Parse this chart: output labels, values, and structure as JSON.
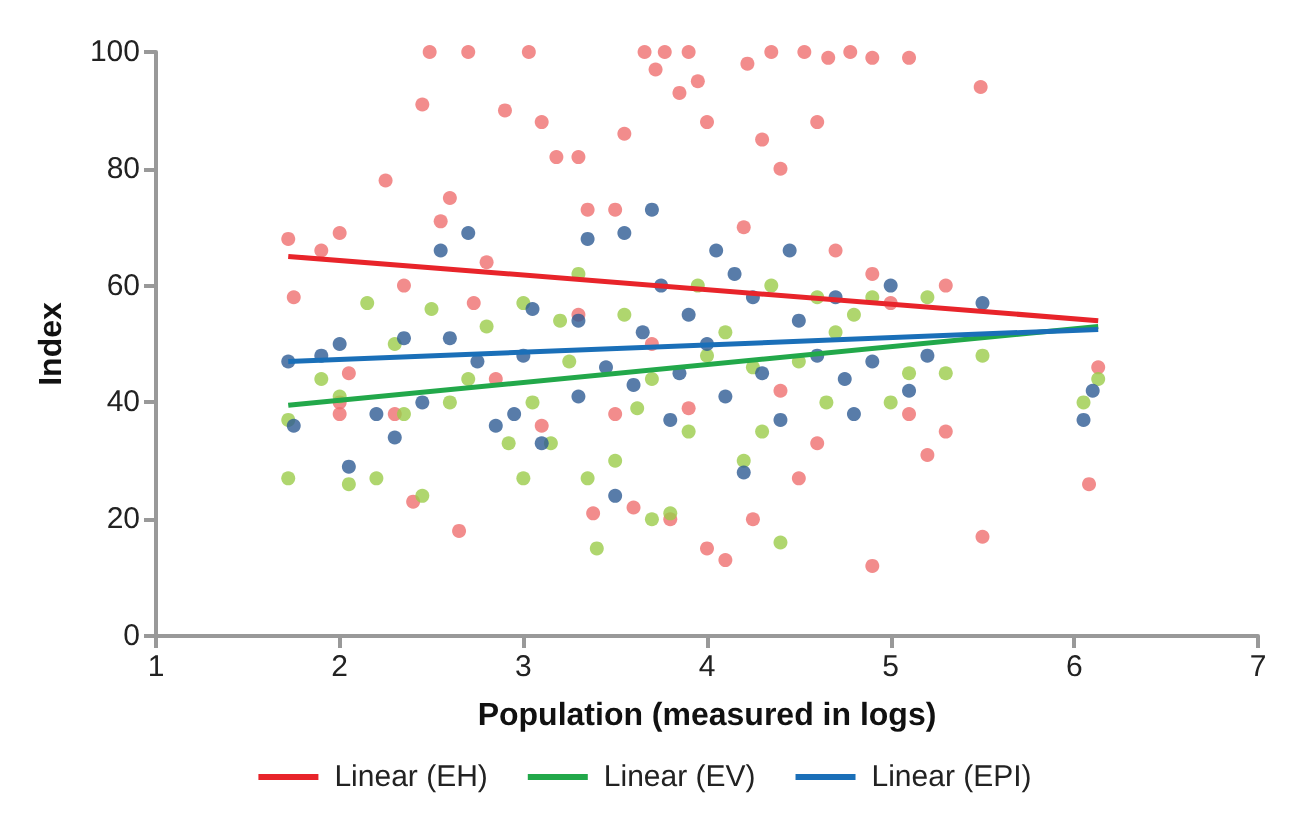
{
  "chart_data": {
    "type": "scatter",
    "xlabel": "Population (measured in logs)",
    "ylabel": "Index",
    "xlim": [
      1,
      7
    ],
    "xticks": [
      1,
      2,
      3,
      4,
      5,
      6,
      7
    ],
    "ylim": [
      0,
      100
    ],
    "yticks": [
      0,
      20,
      40,
      60,
      80,
      100
    ],
    "grid": false,
    "legend": "bottom",
    "marker": "circle",
    "series": [
      {
        "color": "#ef6f6f",
        "x": [
          1.72,
          1.75,
          1.9,
          2.0,
          2.05,
          2.25,
          2.35,
          2.45,
          2.49,
          2.55,
          2.6,
          2.7,
          2.73,
          2.8,
          2.9,
          3.03,
          3.1,
          3.18,
          3.3,
          3.35,
          3.5,
          3.55,
          3.66,
          3.72,
          3.77,
          3.85,
          3.9,
          3.95,
          4.0,
          4.22,
          4.3,
          4.35,
          4.4,
          4.53,
          4.6,
          4.66,
          4.78,
          4.9,
          5.1,
          5.49,
          4.2,
          4.7,
          4.9,
          5.0,
          5.3,
          6.13,
          6.08,
          2.65,
          2.4,
          2.0,
          3.38,
          3.6,
          3.8,
          4.0,
          4.1,
          4.25,
          4.5,
          4.9,
          5.2,
          5.5,
          5.3,
          4.6,
          3.9,
          3.1,
          2.85,
          2.3,
          3.3,
          3.7,
          4.4,
          5.1,
          2.0,
          3.5
        ],
        "values": [
          68,
          58,
          66,
          69,
          45,
          78,
          60,
          91,
          100,
          71,
          75,
          100,
          57,
          64,
          90,
          100,
          88,
          82,
          82,
          73,
          73,
          86,
          100,
          97,
          100,
          93,
          100,
          95,
          88,
          98,
          85,
          100,
          80,
          100,
          88,
          99,
          100,
          99,
          99,
          94,
          70,
          66,
          62,
          57,
          60,
          46,
          26,
          18,
          23,
          38,
          21,
          22,
          20,
          15,
          13,
          20,
          27,
          12,
          31,
          17,
          35,
          33,
          39,
          36,
          44,
          38,
          55,
          50,
          42,
          38,
          40,
          38
        ]
      },
      {
        "color": "#9bcc4a",
        "x": [
          1.72,
          1.72,
          1.9,
          2.0,
          2.05,
          2.2,
          2.35,
          2.45,
          2.5,
          2.6,
          2.7,
          2.8,
          2.92,
          3.0,
          3.05,
          3.15,
          3.25,
          3.35,
          3.4,
          3.5,
          3.55,
          3.62,
          3.7,
          3.8,
          3.9,
          3.95,
          4.0,
          4.1,
          4.2,
          4.25,
          4.3,
          4.4,
          4.5,
          4.6,
          4.65,
          4.8,
          4.9,
          5.0,
          5.1,
          5.2,
          5.3,
          5.5,
          6.05,
          6.13,
          3.0,
          2.3,
          3.3,
          3.7,
          4.35,
          4.7,
          2.15,
          3.2
        ],
        "values": [
          37,
          27,
          44,
          41,
          26,
          27,
          38,
          24,
          56,
          40,
          44,
          53,
          33,
          27,
          40,
          33,
          47,
          27,
          15,
          30,
          55,
          39,
          20,
          21,
          35,
          60,
          48,
          52,
          30,
          46,
          35,
          16,
          47,
          58,
          40,
          55,
          58,
          40,
          45,
          58,
          45,
          48,
          40,
          44,
          57,
          50,
          62,
          44,
          60,
          52,
          57,
          54
        ]
      },
      {
        "color": "#2e5b94",
        "x": [
          1.72,
          1.75,
          1.9,
          2.0,
          2.05,
          2.2,
          2.35,
          2.45,
          2.55,
          2.6,
          2.7,
          2.75,
          2.85,
          2.95,
          3.0,
          3.05,
          3.1,
          3.3,
          3.35,
          3.45,
          3.5,
          3.55,
          3.6,
          3.7,
          3.75,
          3.8,
          3.9,
          4.0,
          4.05,
          4.1,
          4.2,
          4.25,
          4.3,
          4.4,
          4.5,
          4.6,
          4.7,
          4.8,
          4.9,
          5.0,
          5.1,
          5.2,
          5.5,
          6.05,
          6.1,
          3.3,
          3.65,
          4.15,
          4.45,
          2.3,
          3.85,
          4.75
        ],
        "values": [
          47,
          36,
          48,
          50,
          29,
          38,
          51,
          40,
          66,
          51,
          69,
          47,
          36,
          38,
          48,
          56,
          33,
          54,
          68,
          46,
          24,
          69,
          43,
          73,
          60,
          37,
          55,
          50,
          66,
          41,
          28,
          58,
          45,
          37,
          54,
          48,
          58,
          38,
          47,
          60,
          42,
          48,
          57,
          37,
          42,
          41,
          52,
          62,
          66,
          34,
          45,
          44
        ]
      },
      {
        "name": "Linear (EH)",
        "type": "line",
        "marker": "none",
        "color": "#e8242a",
        "x": [
          1.72,
          6.13
        ],
        "values": [
          65,
          54
        ]
      },
      {
        "name": "Linear (EV)",
        "type": "line",
        "marker": "none",
        "color": "#22a84a",
        "x": [
          1.72,
          6.13
        ],
        "values": [
          39.5,
          53
        ]
      },
      {
        "name": "Linear (EPI)",
        "type": "line",
        "marker": "none",
        "color": "#1a6fb8",
        "x": [
          1.72,
          6.13
        ],
        "values": [
          47,
          52.5
        ]
      }
    ]
  }
}
